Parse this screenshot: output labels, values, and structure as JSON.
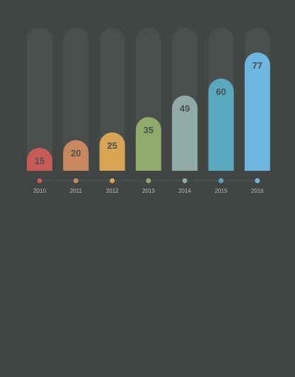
{
  "chart_data": {
    "type": "bar",
    "title": "",
    "xlabel": "",
    "ylabel": "",
    "categories": [
      "2010",
      "2011",
      "2012",
      "2013",
      "2014",
      "2015",
      "2016"
    ],
    "values": [
      15,
      20,
      25,
      35,
      49,
      60,
      77
    ],
    "value_labels": [
      "15",
      "20",
      "25",
      "35",
      "49",
      "60",
      "77"
    ],
    "ylim": [
      0,
      77
    ],
    "colors": [
      "#c95a5a",
      "#c98760",
      "#d6a452",
      "#8faa6b",
      "#92aaa7",
      "#59a8c0",
      "#6db6e0"
    ],
    "track_color": "#4a4e4d",
    "background": "#414544",
    "grid": false,
    "legend": "none"
  }
}
